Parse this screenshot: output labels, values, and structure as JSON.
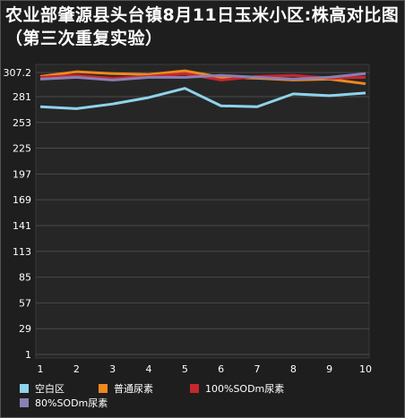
{
  "chart_data": {
    "type": "line",
    "title": "农业部肇源县头台镇8月11日玉米小区:株高对比图（第三次重复实验）",
    "x": [
      1,
      2,
      3,
      4,
      5,
      6,
      7,
      8,
      9,
      10
    ],
    "yticks": [
      "307.2",
      "281",
      "253",
      "225",
      "197",
      "169",
      "141",
      "113",
      "85",
      "57",
      "29",
      "1"
    ],
    "ylim": [
      1,
      307.2
    ],
    "grid": "horizontal",
    "legend_position": "bottom",
    "series": [
      {
        "name": "空白区",
        "color": "#8fd3ec",
        "values": [
          270,
          268,
          273,
          280,
          290,
          271,
          270,
          284,
          282,
          285
        ]
      },
      {
        "name": "普通尿素",
        "color": "#f0891e",
        "values": [
          303,
          308,
          306,
          305,
          309,
          302,
          301,
          299,
          300,
          295
        ]
      },
      {
        "name": "100%SODm尿素",
        "color": "#c8262e",
        "values": [
          302,
          304,
          301,
          303,
          306,
          299,
          303,
          304,
          301,
          302
        ]
      },
      {
        "name": "80%SODm尿素",
        "color": "#8c7fb5",
        "values": [
          300,
          302,
          299,
          302,
          302,
          304,
          302,
          300,
          302,
          306
        ]
      }
    ]
  }
}
